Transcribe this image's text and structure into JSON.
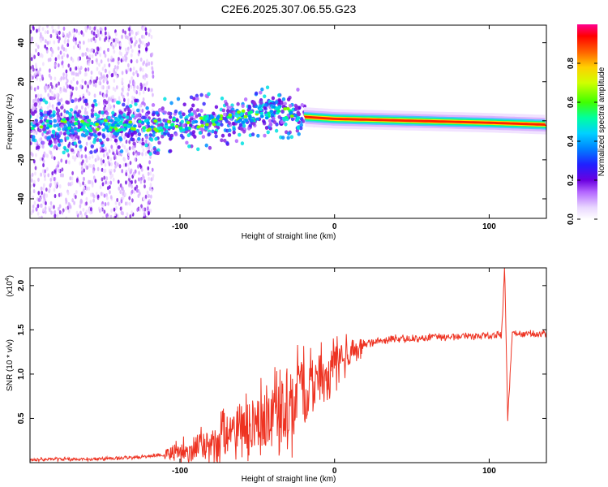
{
  "title": "C2E6.2025.307.06.55.G23",
  "chart_data": [
    {
      "type": "heatmap",
      "xlabel": "Height of straight line (km)",
      "ylabel": "Frequency (Hz)",
      "xlim": [
        -197,
        137
      ],
      "ylim": [
        -50,
        49
      ],
      "xticks": [
        -100,
        0,
        100
      ],
      "yticks": [
        -40,
        -20,
        0,
        20,
        40
      ],
      "xtick_labels": [
        "-100",
        "0",
        "100"
      ],
      "ytick_labels": [
        "-40",
        "-20",
        "0",
        "20",
        "40"
      ],
      "colorbar": {
        "label": "Normalized spectral amplitude",
        "range": [
          0,
          1
        ],
        "ticks": [
          0.0,
          0.2,
          0.4,
          0.6,
          0.8
        ],
        "tick_labels": [
          "0.0",
          "0.2",
          "0.4",
          "0.6",
          "0.8"
        ]
      },
      "ridge": [
        {
          "x": -195,
          "freq": -2
        },
        {
          "x": -120,
          "freq": -3
        },
        {
          "x": -100,
          "freq": -2
        },
        {
          "x": -80,
          "freq": 0
        },
        {
          "x": -60,
          "freq": 2
        },
        {
          "x": -40,
          "freq": 5
        },
        {
          "x": -25,
          "freq": 3
        },
        {
          "x": -20,
          "freq": 2
        },
        {
          "x": 0,
          "freq": 1
        },
        {
          "x": 50,
          "freq": 0
        },
        {
          "x": 100,
          "freq": -1
        },
        {
          "x": 137,
          "freq": -2
        }
      ]
    },
    {
      "type": "line",
      "xlabel": "Height of straight line (km)",
      "ylabel": "SNR (10 * v/v)",
      "y_multiplier": "(x10^4)",
      "xlim": [
        -197,
        137
      ],
      "ylim": [
        0,
        2.2
      ],
      "xticks": [
        -100,
        0,
        100
      ],
      "yticks": [
        0.5,
        1.0,
        1.5,
        2.0
      ],
      "xtick_labels": [
        "-100",
        "0",
        "100"
      ],
      "ytick_labels": [
        "0.5",
        "1.0",
        "1.5",
        "2.0"
      ],
      "series": [
        {
          "name": "SNR",
          "color": "#ee3322",
          "x": [
            -197,
            -180,
            -160,
            -140,
            -120,
            -105,
            -95,
            -85,
            -75,
            -65,
            -55,
            -45,
            -35,
            -25,
            -18,
            -12,
            -5,
            0,
            5,
            10,
            15,
            20,
            30,
            40,
            50,
            60,
            70,
            80,
            90,
            100,
            105,
            108,
            110,
            112,
            115,
            120,
            137
          ],
          "y": [
            0.03,
            0.04,
            0.04,
            0.05,
            0.07,
            0.1,
            0.14,
            0.2,
            0.28,
            0.35,
            0.42,
            0.5,
            0.58,
            0.68,
            0.8,
            0.9,
            1.02,
            1.1,
            1.18,
            1.25,
            1.3,
            1.34,
            1.38,
            1.4,
            1.4,
            1.41,
            1.42,
            1.43,
            1.43,
            1.43,
            1.44,
            1.45,
            2.2,
            0.5,
            1.47,
            1.45,
            1.45
          ]
        }
      ]
    }
  ],
  "superscript": "4"
}
